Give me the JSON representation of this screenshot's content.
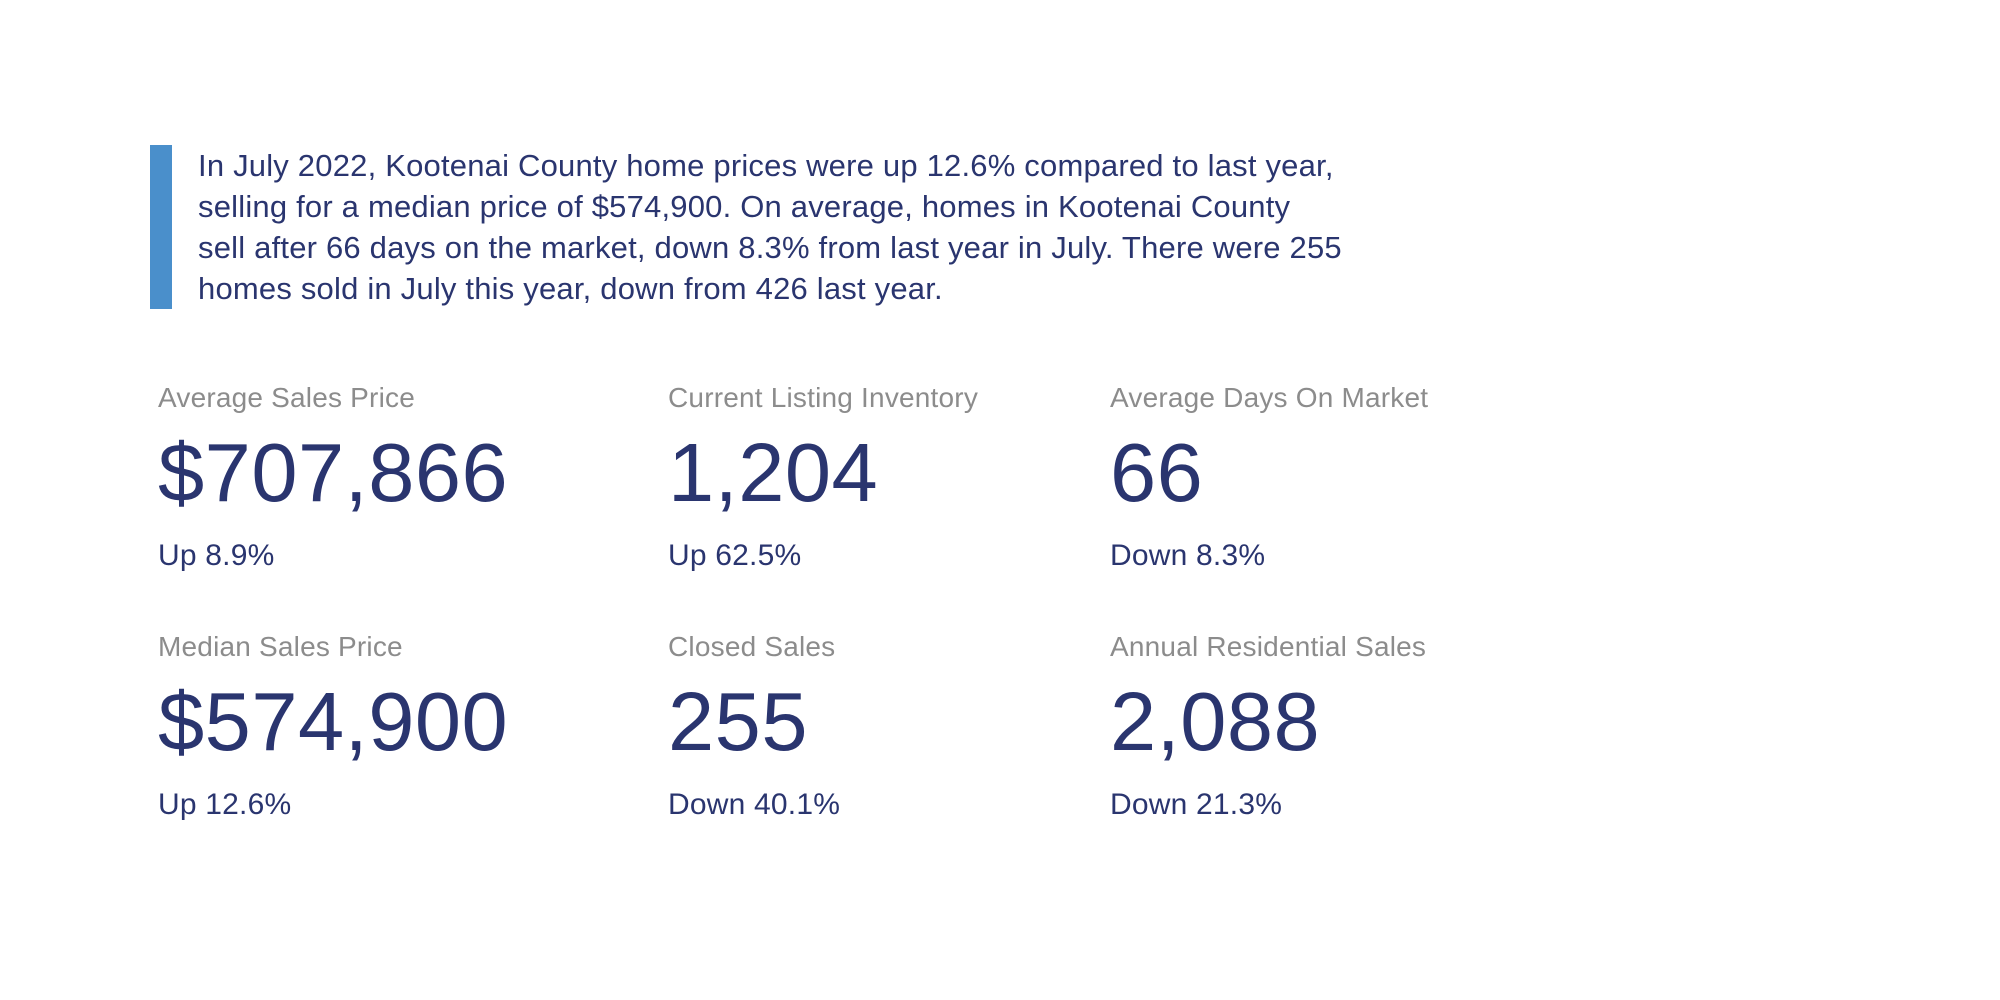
{
  "theme": {
    "accent": "#4A8FCB",
    "navy": "#2A356F",
    "gray": "#8C8C8C",
    "background": "#FFFFFF"
  },
  "summary": {
    "lines": [
      "In July 2022, Kootenai County home prices were up 12.6% compared to last year,",
      "selling for a median price of $574,900. On average, homes in Kootenai County",
      "sell after 66 days on the market, down 8.3% from last year in July. There were 255",
      "homes sold in July this year, down from 426 last year."
    ]
  },
  "stats": {
    "cards": [
      {
        "label": "Average Sales Price",
        "value": "$707,866",
        "change": "Up 8.9%"
      },
      {
        "label": "Current Listing Inventory",
        "value": "1,204",
        "change": "Up 62.5%"
      },
      {
        "label": "Average Days On Market",
        "value": "66",
        "change": "Down 8.3%"
      },
      {
        "label": "Median Sales Price",
        "value": "$574,900",
        "change": "Up 12.6%"
      },
      {
        "label": "Closed Sales",
        "value": "255",
        "change": "Down 40.1%"
      },
      {
        "label": "Annual Residential Sales",
        "value": "2,088",
        "change": "Down 21.3%"
      }
    ]
  }
}
